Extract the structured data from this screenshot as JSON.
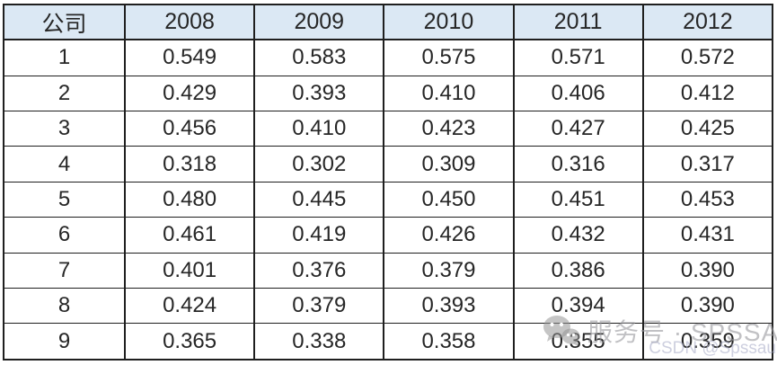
{
  "table": {
    "columns": [
      "公司",
      "2008",
      "2009",
      "2010",
      "2011",
      "2012"
    ],
    "rows": [
      [
        "1",
        "0.549",
        "0.583",
        "0.575",
        "0.571",
        "0.572"
      ],
      [
        "2",
        "0.429",
        "0.393",
        "0.410",
        "0.406",
        "0.412"
      ],
      [
        "3",
        "0.456",
        "0.410",
        "0.423",
        "0.427",
        "0.425"
      ],
      [
        "4",
        "0.318",
        "0.302",
        "0.309",
        "0.316",
        "0.317"
      ],
      [
        "5",
        "0.480",
        "0.445",
        "0.450",
        "0.451",
        "0.453"
      ],
      [
        "6",
        "0.461",
        "0.419",
        "0.426",
        "0.432",
        "0.431"
      ],
      [
        "7",
        "0.401",
        "0.376",
        "0.379",
        "0.386",
        "0.390"
      ],
      [
        "8",
        "0.424",
        "0.379",
        "0.393",
        "0.394",
        "0.390"
      ],
      [
        "9",
        "0.365",
        "0.338",
        "0.358",
        "0.355",
        "0.359"
      ]
    ]
  },
  "watermark": {
    "icon": "wechat-icon",
    "service_text": "服务号 · SPSSAU",
    "csdn_credit": "CSDN @Spssau"
  },
  "colors": {
    "header_bg": "#dbe8f4",
    "border": "#1f1f1f",
    "cell_text": "#262626",
    "watermark_gray": "#98989c",
    "watermark_csdn": "#b2b6ce"
  },
  "chart_data": {
    "type": "table",
    "title": "",
    "row_label_header": "公司",
    "categories": [
      "2008",
      "2009",
      "2010",
      "2011",
      "2012"
    ],
    "series": [
      {
        "name": "1",
        "values": [
          0.549,
          0.583,
          0.575,
          0.571,
          0.572
        ]
      },
      {
        "name": "2",
        "values": [
          0.429,
          0.393,
          0.41,
          0.406,
          0.412
        ]
      },
      {
        "name": "3",
        "values": [
          0.456,
          0.41,
          0.423,
          0.427,
          0.425
        ]
      },
      {
        "name": "4",
        "values": [
          0.318,
          0.302,
          0.309,
          0.316,
          0.317
        ]
      },
      {
        "name": "5",
        "values": [
          0.48,
          0.445,
          0.45,
          0.451,
          0.453
        ]
      },
      {
        "name": "6",
        "values": [
          0.461,
          0.419,
          0.426,
          0.432,
          0.431
        ]
      },
      {
        "name": "7",
        "values": [
          0.401,
          0.376,
          0.379,
          0.386,
          0.39
        ]
      },
      {
        "name": "8",
        "values": [
          0.424,
          0.379,
          0.393,
          0.394,
          0.39
        ]
      },
      {
        "name": "9",
        "values": [
          0.365,
          0.338,
          0.358,
          0.355,
          0.359
        ]
      }
    ]
  }
}
